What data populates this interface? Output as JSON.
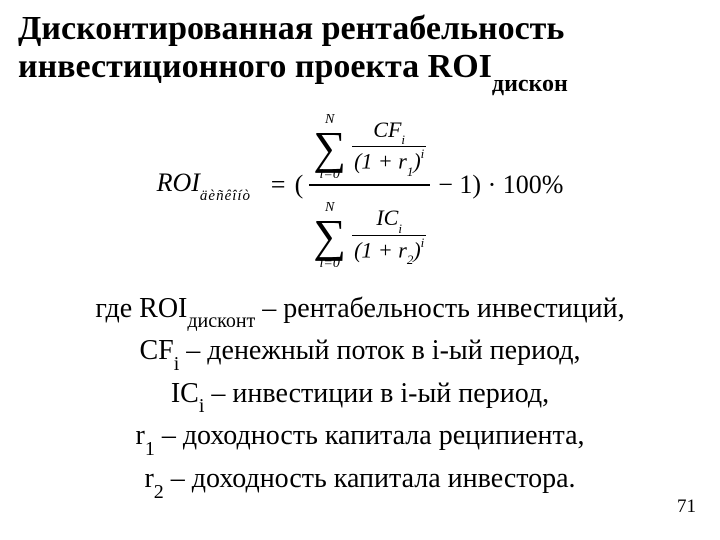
{
  "title": {
    "line1": "Дисконтированная рентабельность",
    "line2_pre": "инвестиционного проекта ROI",
    "line2_sub": "дискон"
  },
  "formula": {
    "lhs_var": "ROI",
    "lhs_sub": "äèñêîíò",
    "eq": "=",
    "open_paren": "(",
    "sum_upper": "N",
    "sum_lower": "i=0",
    "cf_var": "CF",
    "cf_sub": "i",
    "ic_var": "IC",
    "ic_sub": "i",
    "den_open": "(1 + ",
    "r1_var": "r",
    "r1_sub": "1",
    "r2_var": "r",
    "r2_sub": "2",
    "den_close": ")",
    "pow": "i",
    "minus1": "− 1)",
    "times100": " · 100%"
  },
  "legend": {
    "l1_pre": "где ROI",
    "l1_sub": "дисконт",
    "l1_post": " – рентабельность инвестиций,",
    "l2_pre": "CF",
    "l2_sub": "i",
    "l2_post": " – денежный поток в i-ый  период,",
    "l3_pre": "IC",
    "l3_sub": "i",
    "l3_post": " –   инвестиции в  i-ый  период,",
    "l4_pre": "r",
    "l4_sub": "1",
    "l4_post": " – доходность капитала реципиента,",
    "l5_pre": "r",
    "l5_sub": "2",
    "l5_post": " – доходность капитала инвестора."
  },
  "page_number": "71",
  "style": {
    "bg": "#ffffff",
    "fg": "#000000",
    "title_fontsize": 34,
    "body_fontsize": 28,
    "formula_fontsize": 26,
    "pagenum_fontsize": 19,
    "font_family": "Times New Roman"
  }
}
